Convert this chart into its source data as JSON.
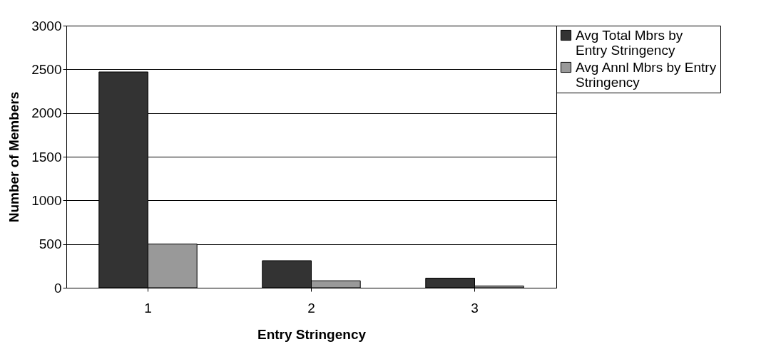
{
  "chart_data": {
    "type": "bar",
    "xlabel": "Entry Stringency",
    "ylabel": "Number of Members",
    "categories": [
      "1",
      "2",
      "3"
    ],
    "series": [
      {
        "name": "Avg Total Mbrs by Entry Stringency",
        "color": "#333333",
        "values": [
          2470,
          310,
          110
        ]
      },
      {
        "name": "Avg Annl Mbrs by Entry Stringency",
        "color": "#999999",
        "values": [
          500,
          80,
          20
        ]
      }
    ],
    "ylim": [
      0,
      3000
    ],
    "yticks": [
      0,
      500,
      1000,
      1500,
      2000,
      2500,
      3000
    ],
    "grid": "y",
    "legend": "right"
  }
}
